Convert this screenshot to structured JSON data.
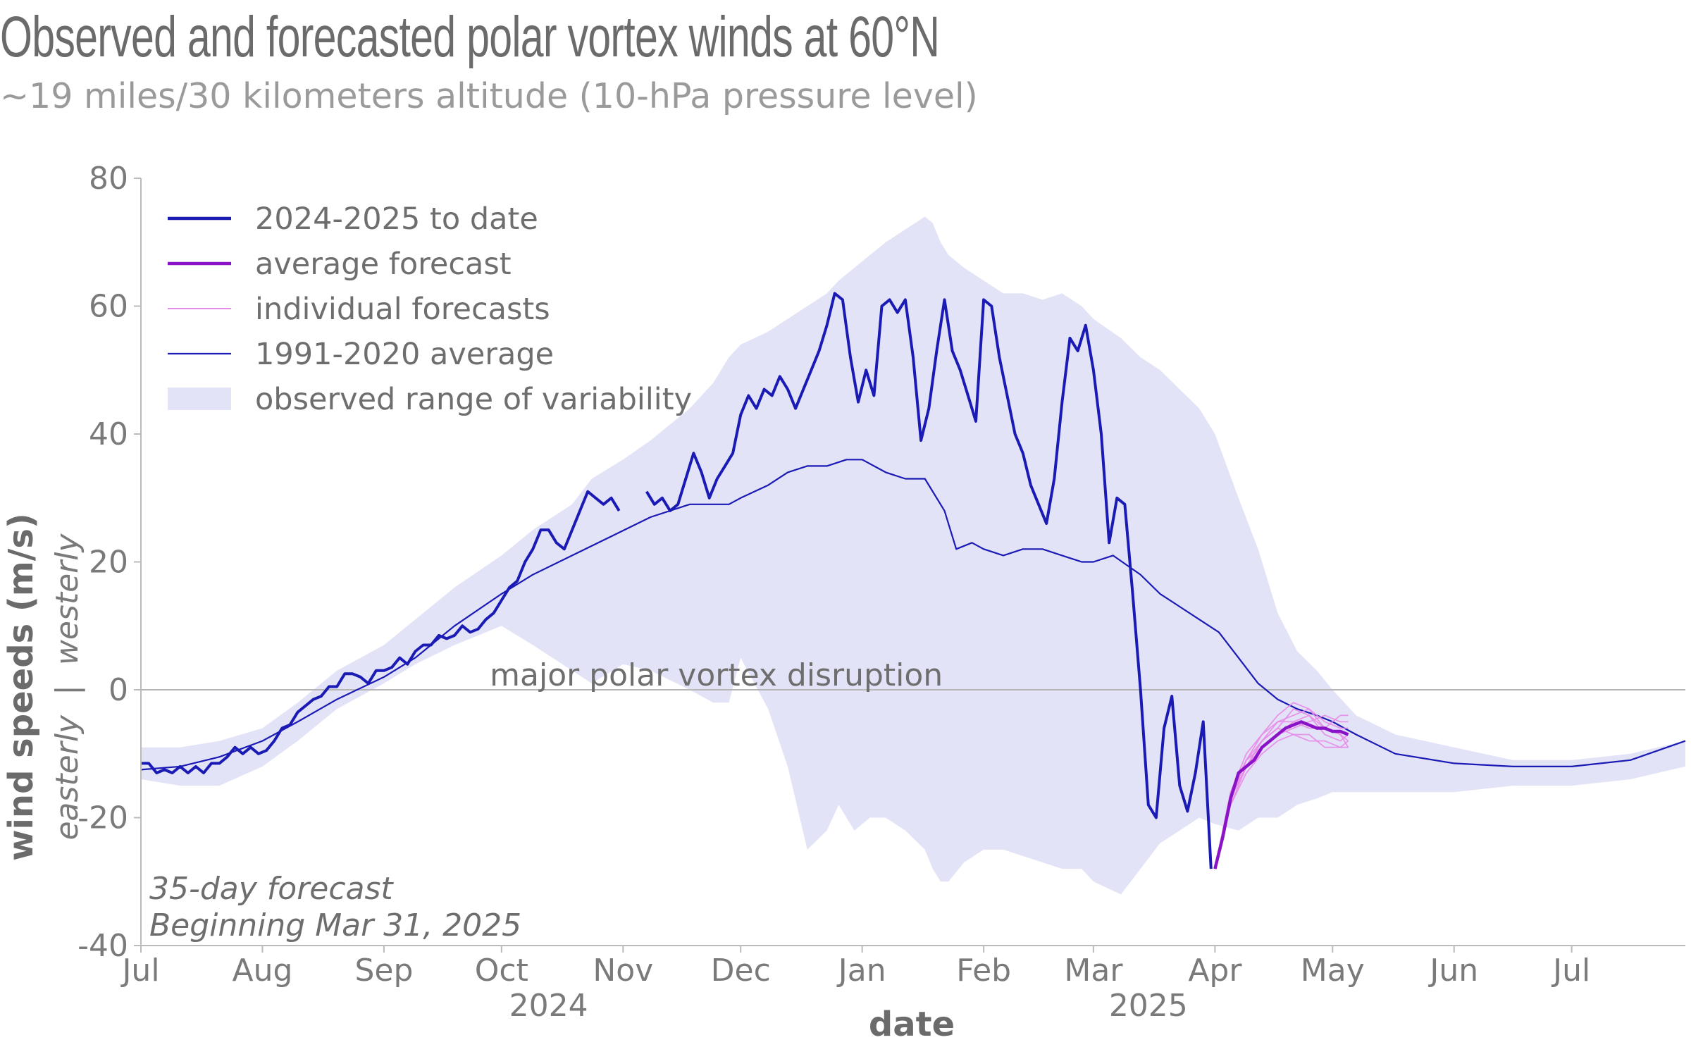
{
  "header": {
    "title": "Observed and forecasted polar vortex winds at 60°N",
    "subtitle": "~19 miles/30 kilometers altitude (10-hPa pressure level)"
  },
  "colors": {
    "observed": "#1a1ab5",
    "average_forecast": "#8a12c7",
    "individual_forecasts": "#e58ce6",
    "climatology": "#1a1ab5",
    "range": "#e3e3f8",
    "axis": "#bbbbbb",
    "text": "#7a7a7a"
  },
  "chart_data": {
    "type": "line",
    "title": "Observed and forecasted polar vortex winds at 60°N",
    "subtitle": "~19 miles/30 kilometers altitude (10-hPa pressure level)",
    "xlabel": "date",
    "ylabel": "wind speeds (m/s)",
    "ylabel_sub": "easterly  |  westerly",
    "ylim": [
      -40,
      80
    ],
    "yticks": [
      80,
      60,
      40,
      20,
      0,
      -20,
      -40
    ],
    "x_unit": "days since Jul 1, 2024",
    "xlim": [
      0,
      394
    ],
    "xticks": [
      {
        "label": "Jul",
        "x": 0
      },
      {
        "label": "Aug",
        "x": 31
      },
      {
        "label": "Sep",
        "x": 62
      },
      {
        "label": "Oct",
        "x": 92
      },
      {
        "label": "Nov",
        "x": 123
      },
      {
        "label": "Dec",
        "x": 153
      },
      {
        "label": "Jan",
        "x": 184
      },
      {
        "label": "Feb",
        "x": 215
      },
      {
        "label": "Mar",
        "x": 243
      },
      {
        "label": "Apr",
        "x": 274
      },
      {
        "label": "May",
        "x": 304
      },
      {
        "label": "Jun",
        "x": 335
      },
      {
        "label": "Jul",
        "x": 365
      }
    ],
    "year_labels": [
      {
        "label": "2024",
        "x": 104
      },
      {
        "label": "2025",
        "x": 257
      }
    ],
    "reference_line": {
      "y": 0,
      "label": "major polar vortex disruption",
      "label_x": 89
    },
    "legend": [
      {
        "key": "observed",
        "label": "2024-2025 to date"
      },
      {
        "key": "average_forecast",
        "label": "average forecast"
      },
      {
        "key": "individual_forecasts",
        "label": "individual forecasts"
      },
      {
        "key": "climatology",
        "label": "1991-2020 average"
      },
      {
        "key": "range",
        "label": "observed range of variability"
      }
    ],
    "notes": [
      "35-day forecast",
      "Beginning Mar 31, 2025"
    ],
    "range": {
      "x": [
        0,
        10,
        20,
        31,
        40,
        50,
        62,
        70,
        80,
        92,
        100,
        110,
        115,
        123,
        130,
        140,
        146,
        150,
        153,
        160,
        165,
        170,
        175,
        178,
        182,
        186,
        190,
        195,
        200,
        202,
        204,
        206,
        210,
        215,
        220,
        225,
        230,
        235,
        240,
        243,
        250,
        255,
        260,
        265,
        270,
        274,
        280,
        285,
        290,
        295,
        300,
        304,
        310,
        320,
        335,
        350,
        365,
        380,
        394
      ],
      "upper": [
        -9,
        -9,
        -8,
        -6,
        -2,
        3,
        7,
        11,
        16,
        21,
        25,
        29,
        33,
        36,
        39,
        44,
        48,
        52,
        54,
        56,
        58,
        60,
        62,
        64,
        66,
        68,
        70,
        72,
        74,
        73,
        70,
        68,
        66,
        64,
        62,
        62,
        61,
        62,
        60,
        58,
        55,
        52,
        50,
        47,
        44,
        40,
        30,
        22,
        12,
        6,
        3,
        0,
        -4,
        -7,
        -9,
        -11,
        -11,
        -10,
        -8
      ],
      "lower": [
        -14,
        -15,
        -15,
        -12,
        -8,
        -3,
        1,
        4,
        7,
        10,
        7,
        3,
        1,
        4,
        3,
        0,
        -2,
        -2,
        5,
        -3,
        -12,
        -25,
        -22,
        -18,
        -22,
        -20,
        -20,
        -22,
        -25,
        -28,
        -30,
        -30,
        -27,
        -25,
        -25,
        -26,
        -27,
        -28,
        -28,
        -30,
        -32,
        -28,
        -24,
        -22,
        -20,
        -21,
        -22,
        -20,
        -20,
        -18,
        -17,
        -16,
        -16,
        -16,
        -16,
        -15,
        -15,
        -14,
        -12
      ]
    },
    "series": [
      {
        "name": "2024-2025 to date",
        "x": [
          0,
          2,
          4,
          6,
          8,
          10,
          12,
          14,
          16,
          18,
          20,
          22,
          24,
          26,
          28,
          30,
          32,
          34,
          36,
          38,
          40,
          42,
          44,
          46,
          48,
          50,
          52,
          54,
          56,
          58,
          60,
          62,
          64,
          66,
          68,
          70,
          72,
          74,
          76,
          78,
          80,
          82,
          84,
          86,
          88,
          90,
          92,
          94,
          96,
          98,
          100,
          102,
          104,
          106,
          108,
          110,
          112,
          114,
          116,
          118,
          120,
          122
        ],
        "values": [
          -11.5,
          -11.5,
          -13,
          -12.5,
          -13,
          -12,
          -13,
          -12,
          -13,
          -11.5,
          -11.5,
          -10.5,
          -9,
          -10,
          -9,
          -10,
          -9.5,
          -8,
          -6,
          -5.5,
          -3.5,
          -2.5,
          -1.5,
          -1,
          0.5,
          0.5,
          2.5,
          2.5,
          2,
          1,
          3,
          3,
          3.5,
          5,
          4,
          6,
          7,
          7,
          8.5,
          8,
          8.5,
          10,
          9,
          9.5,
          11,
          12,
          14,
          16,
          17,
          20,
          22,
          25,
          25,
          23,
          22,
          25,
          28,
          31,
          30,
          29,
          30,
          28
        ]
      },
      {
        "name": "2024-2025 to date",
        "x": [
          129,
          131,
          133,
          135,
          137,
          139,
          141,
          143,
          145,
          147,
          149,
          151,
          153,
          155,
          157,
          159,
          161,
          163,
          165,
          167,
          169,
          171,
          173,
          175,
          177,
          179,
          181,
          183,
          185,
          187,
          189,
          191,
          193,
          195,
          197,
          199,
          201,
          203,
          205,
          207,
          209,
          211,
          213,
          215,
          217,
          219,
          221,
          223,
          225,
          227,
          229,
          231,
          233,
          235,
          237,
          239,
          241,
          243,
          245,
          247,
          249,
          251,
          253,
          255,
          257,
          259,
          261,
          263,
          265,
          267,
          269,
          271,
          273
        ],
        "values": [
          31,
          29,
          30,
          28,
          29,
          33,
          37,
          34,
          30,
          33,
          35,
          37,
          43,
          46,
          44,
          47,
          46,
          49,
          47,
          44,
          47,
          50,
          53,
          57,
          62,
          61,
          52,
          45,
          50,
          46,
          60,
          61,
          59,
          61,
          52,
          39,
          44,
          53,
          61,
          53,
          50,
          46,
          42,
          61,
          60,
          52,
          46,
          40,
          37,
          32,
          29,
          26,
          33,
          45,
          55,
          53,
          57,
          50,
          40,
          23,
          30,
          29,
          15,
          0,
          -18,
          -20,
          -6,
          -1,
          -15,
          -19,
          -13,
          -5,
          -28
        ]
      },
      {
        "name": "average forecast",
        "x": [
          274,
          276,
          278,
          280,
          282,
          284,
          286,
          288,
          290,
          292,
          294,
          296,
          298,
          300,
          302,
          304,
          306,
          308
        ],
        "values": [
          -28,
          -23,
          -17,
          -13,
          -12,
          -11,
          -9,
          -8,
          -7,
          -6,
          -5.5,
          -5,
          -5.5,
          -6,
          -6,
          -6.5,
          -6.5,
          -7
        ]
      },
      {
        "name": "1991-2020 average",
        "x": [
          0,
          10,
          20,
          31,
          40,
          50,
          62,
          70,
          80,
          92,
          100,
          110,
          120,
          130,
          140,
          150,
          153,
          160,
          165,
          170,
          175,
          180,
          184,
          190,
          195,
          200,
          205,
          208,
          212,
          215,
          220,
          225,
          230,
          235,
          240,
          243,
          248,
          255,
          260,
          265,
          270,
          275,
          280,
          285,
          290,
          295,
          300,
          304,
          310,
          320,
          335,
          350,
          365,
          380,
          394
        ],
        "values": [
          -12.5,
          -12,
          -10.5,
          -8,
          -5,
          -1.5,
          2,
          5,
          10,
          15,
          18,
          21,
          24,
          27,
          29,
          29,
          30,
          32,
          34,
          35,
          35,
          36,
          36,
          34,
          33,
          33,
          28,
          22,
          23,
          22,
          21,
          22,
          22,
          21,
          20,
          20,
          21,
          18,
          15,
          13,
          11,
          9,
          5,
          1,
          -1.5,
          -3,
          -4,
          -5,
          -7,
          -10,
          -11.5,
          -12,
          -12,
          -11,
          -8
        ]
      }
    ],
    "individual_forecasts": {
      "x": [
        274,
        278,
        282,
        286,
        290,
        294,
        298,
        302,
        306,
        308
      ],
      "members": [
        [
          -28,
          -18,
          -12,
          -8,
          -5,
          -4,
          -3,
          -5,
          -6,
          -6
        ],
        [
          -28,
          -17,
          -11,
          -8,
          -6,
          -7,
          -8,
          -8,
          -9,
          -9
        ],
        [
          -28,
          -16,
          -10,
          -7,
          -4,
          -2,
          -3,
          -6,
          -7,
          -8
        ],
        [
          -28,
          -17,
          -12,
          -9,
          -7,
          -6,
          -5,
          -4,
          -5,
          -5
        ],
        [
          -28,
          -18,
          -13,
          -10,
          -8,
          -7,
          -7,
          -9,
          -9,
          -8
        ],
        [
          -28,
          -16,
          -11,
          -7,
          -5,
          -5,
          -6,
          -6,
          -4,
          -4
        ],
        [
          -28,
          -17,
          -12,
          -8,
          -6,
          -3,
          -4,
          -7,
          -8,
          -7
        ],
        [
          -28,
          -17,
          -11,
          -9,
          -7,
          -5,
          -4,
          -6,
          -7,
          -9
        ]
      ]
    }
  }
}
